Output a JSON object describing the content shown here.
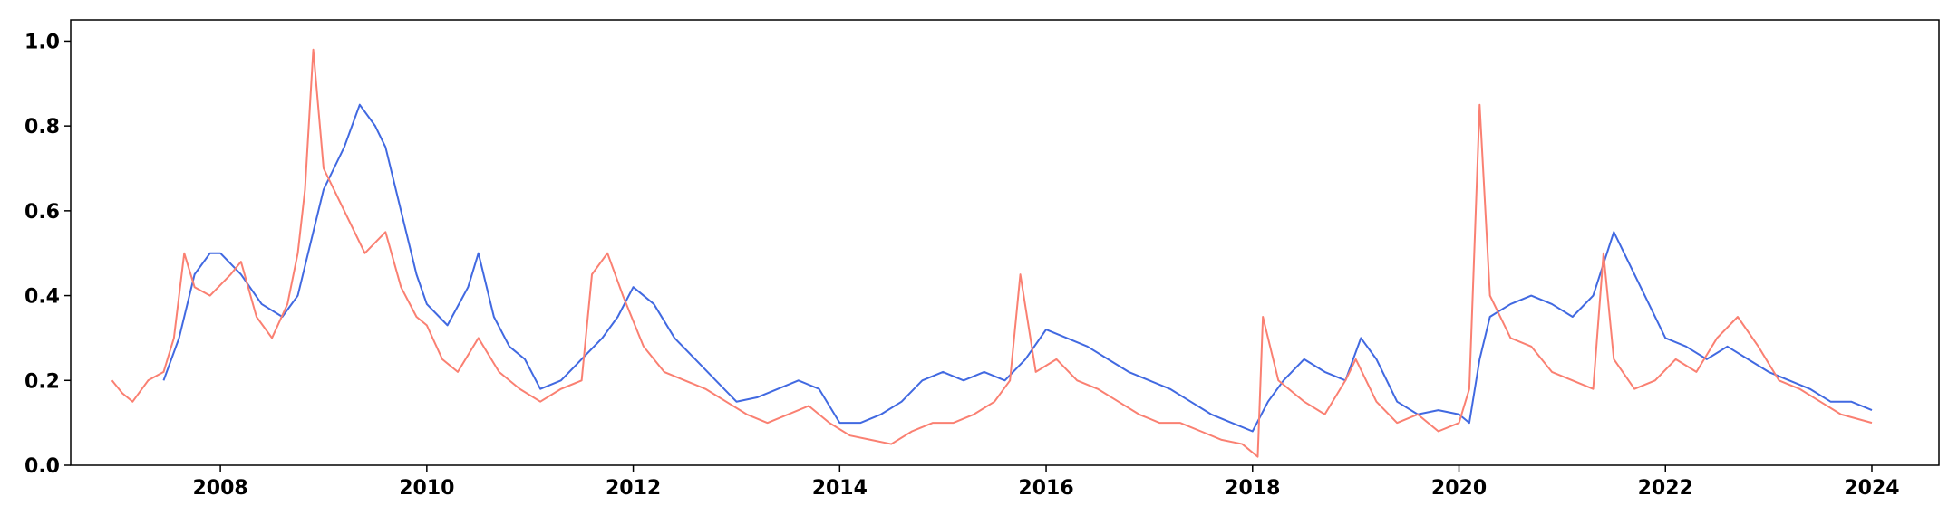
{
  "chart_data": {
    "type": "line",
    "title": "",
    "xlabel": "",
    "ylabel": "",
    "xlim": [
      2006.55,
      2024.65
    ],
    "ylim": [
      0.0,
      1.05
    ],
    "grid": false,
    "legend": "none",
    "x_ticks": [
      2008,
      2010,
      2012,
      2014,
      2016,
      2018,
      2020,
      2022,
      2024
    ],
    "x_tick_labels": [
      "2008",
      "2010",
      "2012",
      "2014",
      "2016",
      "2018",
      "2020",
      "2022",
      "2024"
    ],
    "y_ticks": [
      0.0,
      0.2,
      0.4,
      0.6,
      0.8,
      1.0
    ],
    "y_tick_labels": [
      "0.0",
      "0.2",
      "0.4",
      "0.6",
      "0.8",
      "1.0"
    ],
    "series": [
      {
        "color": "#4169e1",
        "x": [
          2007.45,
          2007.6,
          2007.75,
          2007.9,
          2008.0,
          2008.2,
          2008.4,
          2008.6,
          2008.75,
          2008.9,
          2009.0,
          2009.1,
          2009.2,
          2009.35,
          2009.5,
          2009.6,
          2009.75,
          2009.9,
          2010.0,
          2010.2,
          2010.4,
          2010.5,
          2010.65,
          2010.8,
          2010.95,
          2011.1,
          2011.3,
          2011.5,
          2011.7,
          2011.85,
          2012.0,
          2012.2,
          2012.4,
          2012.6,
          2012.8,
          2013.0,
          2013.2,
          2013.4,
          2013.6,
          2013.8,
          2014.0,
          2014.2,
          2014.4,
          2014.6,
          2014.8,
          2015.0,
          2015.2,
          2015.4,
          2015.6,
          2015.8,
          2016.0,
          2016.2,
          2016.4,
          2016.6,
          2016.8,
          2017.0,
          2017.2,
          2017.4,
          2017.6,
          2017.8,
          2018.0,
          2018.15,
          2018.3,
          2018.5,
          2018.7,
          2018.9,
          2019.05,
          2019.2,
          2019.4,
          2019.6,
          2019.8,
          2020.0,
          2020.1,
          2020.2,
          2020.3,
          2020.5,
          2020.7,
          2020.9,
          2021.1,
          2021.3,
          2021.5,
          2021.6,
          2021.8,
          2022.0,
          2022.2,
          2022.4,
          2022.6,
          2022.8,
          2023.0,
          2023.2,
          2023.4,
          2023.6,
          2023.8,
          2024.0
        ],
        "y": [
          0.2,
          0.3,
          0.45,
          0.5,
          0.5,
          0.45,
          0.38,
          0.35,
          0.4,
          0.55,
          0.65,
          0.7,
          0.75,
          0.85,
          0.8,
          0.75,
          0.6,
          0.45,
          0.38,
          0.33,
          0.42,
          0.5,
          0.35,
          0.28,
          0.25,
          0.18,
          0.2,
          0.25,
          0.3,
          0.35,
          0.42,
          0.38,
          0.3,
          0.25,
          0.2,
          0.15,
          0.16,
          0.18,
          0.2,
          0.18,
          0.1,
          0.1,
          0.12,
          0.15,
          0.2,
          0.22,
          0.2,
          0.22,
          0.2,
          0.25,
          0.32,
          0.3,
          0.28,
          0.25,
          0.22,
          0.2,
          0.18,
          0.15,
          0.12,
          0.1,
          0.08,
          0.15,
          0.2,
          0.25,
          0.22,
          0.2,
          0.3,
          0.25,
          0.15,
          0.12,
          0.13,
          0.12,
          0.1,
          0.25,
          0.35,
          0.38,
          0.4,
          0.38,
          0.35,
          0.4,
          0.55,
          0.5,
          0.4,
          0.3,
          0.28,
          0.25,
          0.28,
          0.25,
          0.22,
          0.2,
          0.18,
          0.15,
          0.15,
          0.13
        ]
      },
      {
        "color": "#fa8072",
        "x": [
          2006.95,
          2007.05,
          2007.15,
          2007.3,
          2007.45,
          2007.55,
          2007.65,
          2007.75,
          2007.9,
          2008.1,
          2008.2,
          2008.35,
          2008.5,
          2008.65,
          2008.75,
          2008.82,
          2008.9,
          2009.0,
          2009.2,
          2009.4,
          2009.6,
          2009.75,
          2009.9,
          2010.0,
          2010.15,
          2010.3,
          2010.5,
          2010.7,
          2010.9,
          2011.1,
          2011.3,
          2011.5,
          2011.6,
          2011.75,
          2011.9,
          2012.1,
          2012.3,
          2012.5,
          2012.7,
          2012.9,
          2013.1,
          2013.3,
          2013.5,
          2013.7,
          2013.9,
          2014.1,
          2014.3,
          2014.5,
          2014.7,
          2014.9,
          2015.1,
          2015.3,
          2015.5,
          2015.65,
          2015.75,
          2015.9,
          2016.1,
          2016.3,
          2016.5,
          2016.7,
          2016.9,
          2017.1,
          2017.3,
          2017.5,
          2017.7,
          2017.9,
          2018.05,
          2018.1,
          2018.25,
          2018.5,
          2018.7,
          2018.9,
          2019.0,
          2019.2,
          2019.4,
          2019.6,
          2019.8,
          2020.0,
          2020.1,
          2020.2,
          2020.3,
          2020.5,
          2020.7,
          2020.9,
          2021.1,
          2021.3,
          2021.4,
          2021.5,
          2021.7,
          2021.9,
          2022.1,
          2022.3,
          2022.5,
          2022.7,
          2022.9,
          2023.1,
          2023.3,
          2023.5,
          2023.7,
          2024.0
        ],
        "y": [
          0.2,
          0.17,
          0.15,
          0.2,
          0.22,
          0.3,
          0.5,
          0.42,
          0.4,
          0.45,
          0.48,
          0.35,
          0.3,
          0.38,
          0.5,
          0.65,
          0.98,
          0.7,
          0.6,
          0.5,
          0.55,
          0.42,
          0.35,
          0.33,
          0.25,
          0.22,
          0.3,
          0.22,
          0.18,
          0.15,
          0.18,
          0.2,
          0.45,
          0.5,
          0.4,
          0.28,
          0.22,
          0.2,
          0.18,
          0.15,
          0.12,
          0.1,
          0.12,
          0.14,
          0.1,
          0.07,
          0.06,
          0.05,
          0.08,
          0.1,
          0.1,
          0.12,
          0.15,
          0.2,
          0.45,
          0.22,
          0.25,
          0.2,
          0.18,
          0.15,
          0.12,
          0.1,
          0.1,
          0.08,
          0.06,
          0.05,
          0.02,
          0.35,
          0.2,
          0.15,
          0.12,
          0.2,
          0.25,
          0.15,
          0.1,
          0.12,
          0.08,
          0.1,
          0.18,
          0.85,
          0.4,
          0.3,
          0.28,
          0.22,
          0.2,
          0.18,
          0.5,
          0.25,
          0.18,
          0.2,
          0.25,
          0.22,
          0.3,
          0.35,
          0.28,
          0.2,
          0.18,
          0.15,
          0.12,
          0.1
        ]
      }
    ]
  }
}
